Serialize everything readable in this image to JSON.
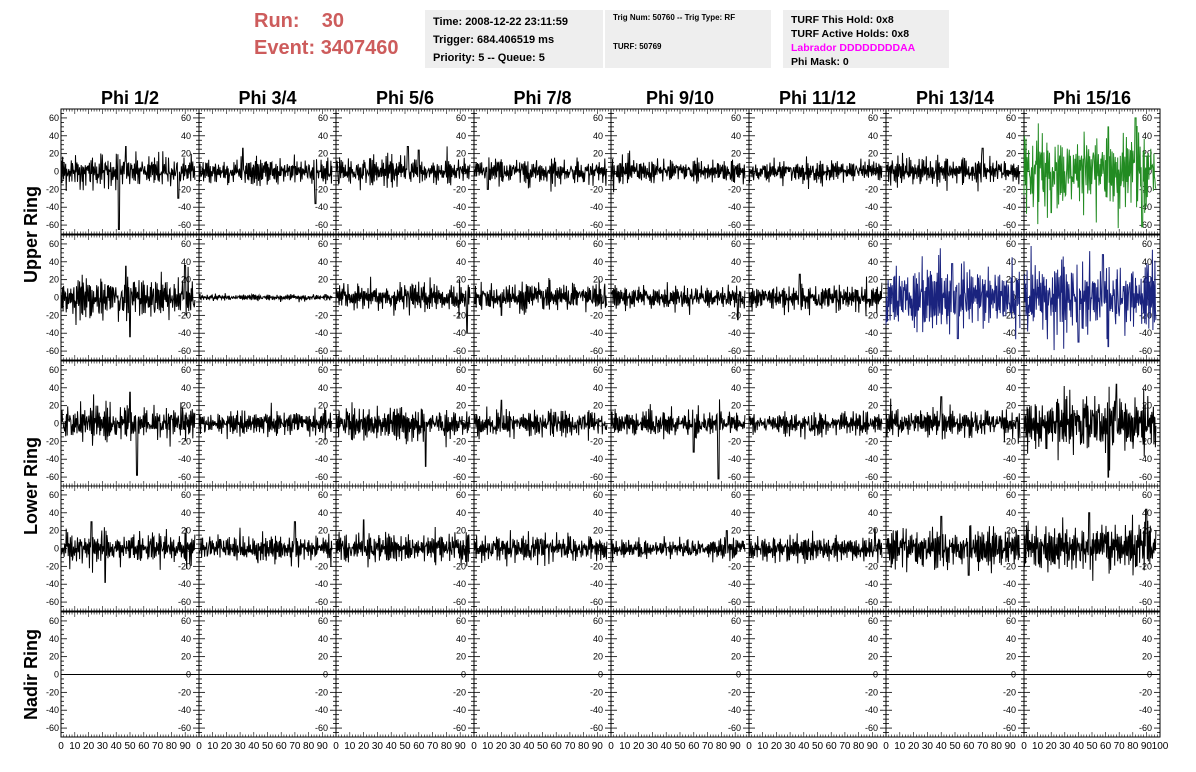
{
  "header": {
    "run_label": "Run:",
    "run_value": "30",
    "event_label": "Event:",
    "event_value": "3407460"
  },
  "info": {
    "time": "Time: 2008-12-22 23:11:59",
    "trigger": "Trigger: 684.406519 ms",
    "priority": "Priority: 5 -- Queue: 5",
    "trig_num": "Trig Num: 50760 -- Trig Type: RF",
    "turf": "TURF: 50769",
    "turf_this_hold": "TURF This Hold: 0x8",
    "turf_active_holds": "TURF Active Holds: 0x8",
    "labrador": "Labrador DDDDDDDDAA",
    "phi_mask": "Phi Mask: 0"
  },
  "colors": {
    "header_red": "#cd5c5c",
    "labrador_magenta": "#ff00ff",
    "trace_black": "#000000",
    "trace_green": "#228b22",
    "trace_blue": "#1a237e",
    "info_bg": "#eeeeee"
  },
  "chart_data": {
    "type": "line",
    "phi_columns": [
      "Phi 1/2",
      "Phi 3/4",
      "Phi 5/6",
      "Phi 7/8",
      "Phi 9/10",
      "Phi 11/12",
      "Phi 13/14",
      "Phi 15/16"
    ],
    "ring_labels": [
      {
        "text": "Upper Ring",
        "rows": [
          0,
          1
        ]
      },
      {
        "text": "Lower Ring",
        "rows": [
          2,
          3
        ]
      },
      {
        "text": "Nadir Ring",
        "rows": [
          4
        ]
      }
    ],
    "ylim": [
      -70,
      70
    ],
    "xlim": [
      0,
      100
    ],
    "ytick_labels": [
      "60",
      "40",
      "20",
      "0",
      "-20",
      "-40",
      "-60"
    ],
    "xtick_labels": [
      "0",
      "10",
      "20",
      "30",
      "40",
      "50",
      "60",
      "70",
      "80",
      "90",
      "100"
    ],
    "samples_per_trace": 260,
    "trace_x_range": [
      0,
      97
    ],
    "grid": false,
    "panels": [
      [
        {
          "amp": 12,
          "color": "black",
          "spikes": [
            [
              42,
              -65
            ],
            [
              47,
              28
            ],
            [
              85,
              -30
            ]
          ]
        },
        {
          "amp": 10,
          "color": "black",
          "spikes": [
            [
              32,
              26
            ],
            [
              85,
              -36
            ]
          ]
        },
        {
          "amp": 11,
          "color": "black",
          "spikes": [
            [
              52,
              28
            ],
            [
              60,
              24
            ]
          ]
        },
        {
          "amp": 10,
          "color": "black",
          "spikes": [
            [
              10,
              -20
            ]
          ]
        },
        {
          "amp": 10,
          "color": "black",
          "spikes": []
        },
        {
          "amp": 9,
          "color": "black",
          "spikes": []
        },
        {
          "amp": 11,
          "color": "black",
          "spikes": [
            [
              70,
              26
            ]
          ]
        },
        {
          "amp": 28,
          "color": "green",
          "spikes": [
            [
              82,
              60
            ],
            [
              87,
              -62
            ],
            [
              62,
              50
            ],
            [
              20,
              -46
            ]
          ]
        }
      ],
      [
        {
          "amp": 15,
          "color": "black",
          "spikes": [
            [
              50,
              -44
            ],
            [
              47,
              35
            ],
            [
              90,
              36
            ]
          ]
        },
        {
          "amp": 2.5,
          "color": "black",
          "spikes": []
        },
        {
          "amp": 11,
          "color": "black",
          "spikes": [
            [
              95,
              -40
            ]
          ]
        },
        {
          "amp": 11,
          "color": "black",
          "spikes": [
            [
              20,
              -20
            ]
          ]
        },
        {
          "amp": 9,
          "color": "black",
          "spikes": [
            [
              92,
              -25
            ]
          ]
        },
        {
          "amp": 11,
          "color": "black",
          "spikes": [
            [
              37,
              26
            ]
          ]
        },
        {
          "amp": 26,
          "color": "blue",
          "spikes": [
            [
              52,
              -46
            ],
            [
              48,
              38
            ]
          ]
        },
        {
          "amp": 27,
          "color": "blue",
          "spikes": [
            [
              58,
              48
            ],
            [
              62,
              -55
            ],
            [
              40,
              -50
            ]
          ]
        }
      ],
      [
        {
          "amp": 13,
          "color": "black",
          "spikes": [
            [
              55,
              -58
            ],
            [
              50,
              35
            ]
          ]
        },
        {
          "amp": 9,
          "color": "black",
          "spikes": []
        },
        {
          "amp": 12,
          "color": "black",
          "spikes": [
            [
              65,
              -48
            ]
          ]
        },
        {
          "amp": 10,
          "color": "black",
          "spikes": [
            [
              20,
              26
            ]
          ]
        },
        {
          "amp": 10,
          "color": "black",
          "spikes": [
            [
              78,
              -62
            ],
            [
              60,
              -32
            ]
          ]
        },
        {
          "amp": 9,
          "color": "black",
          "spikes": []
        },
        {
          "amp": 11,
          "color": "black",
          "spikes": [
            [
              40,
              30
            ]
          ]
        },
        {
          "amp": 20,
          "color": "black",
          "spikes": [
            [
              62,
              -60
            ],
            [
              68,
              44
            ]
          ]
        }
      ],
      [
        {
          "amp": 12,
          "color": "black",
          "spikes": [
            [
              32,
              -38
            ],
            [
              22,
              30
            ]
          ]
        },
        {
          "amp": 10,
          "color": "black",
          "spikes": [
            [
              70,
              30
            ]
          ]
        },
        {
          "amp": 11,
          "color": "black",
          "spikes": [
            [
              20,
              32
            ]
          ]
        },
        {
          "amp": 10,
          "color": "black",
          "spikes": []
        },
        {
          "amp": 8,
          "color": "black",
          "spikes": [
            [
              84,
              20
            ]
          ]
        },
        {
          "amp": 10,
          "color": "black",
          "spikes": [
            [
              92,
              22
            ]
          ]
        },
        {
          "amp": 16,
          "color": "black",
          "spikes": [
            [
              60,
              -30
            ],
            [
              40,
              36
            ]
          ]
        },
        {
          "amp": 18,
          "color": "black",
          "spikes": [
            [
              90,
              44
            ],
            [
              48,
              40
            ]
          ]
        }
      ],
      [
        {
          "amp": 0,
          "color": "black",
          "spikes": []
        },
        {
          "amp": 0,
          "color": "black",
          "spikes": []
        },
        {
          "amp": 0,
          "color": "black",
          "spikes": []
        },
        {
          "amp": 0,
          "color": "black",
          "spikes": []
        },
        {
          "amp": 0,
          "color": "black",
          "spikes": []
        },
        {
          "amp": 0,
          "color": "black",
          "spikes": []
        },
        {
          "amp": 0,
          "color": "black",
          "spikes": []
        },
        {
          "amp": 0,
          "color": "black",
          "spikes": []
        }
      ]
    ]
  }
}
